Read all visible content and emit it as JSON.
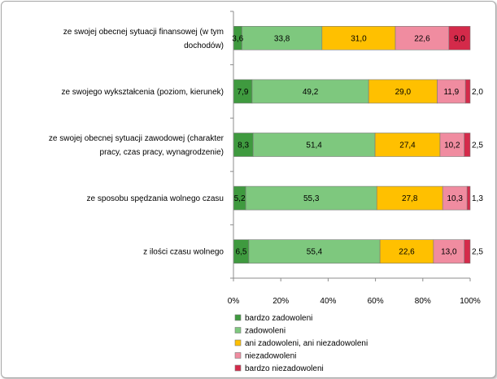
{
  "chart_data": {
    "type": "bar",
    "orientation": "horizontal",
    "stacked": "percent",
    "categories": [
      [
        "ze swojej obecnej sytuacji finansowej (w tym",
        "dochodów)"
      ],
      [
        "ze swojego wykształcenia (poziom, kierunek)"
      ],
      [
        "ze swojej obecnej sytuacji zawodowej (charakter",
        "pracy, czas pracy, wynagrodzenie)"
      ],
      [
        "ze sposobu spędzania wolnego czasu"
      ],
      [
        "z ilości czasu wolnego"
      ]
    ],
    "series": [
      {
        "name": "bardzo zadowoleni",
        "color": "#3f9a3f",
        "values": [
          3.6,
          7.9,
          8.3,
          5.2,
          6.5
        ]
      },
      {
        "name": "zadowoleni",
        "color": "#7ec87e",
        "values": [
          33.8,
          49.2,
          51.4,
          55.3,
          55.4
        ]
      },
      {
        "name": "ani zadowoleni,  ani niezadowoleni",
        "color": "#ffc000",
        "values": [
          31.0,
          29.0,
          27.4,
          27.8,
          22.6
        ]
      },
      {
        "name": "niezadowoleni",
        "color": "#f08ca0",
        "values": [
          22.6,
          11.9,
          10.2,
          10.3,
          13.0
        ]
      },
      {
        "name": "bardzo niezadowoleni",
        "color": "#d42a4a",
        "values": [
          9.0,
          2.0,
          2.5,
          1.3,
          2.5
        ]
      }
    ],
    "xlim": [
      0,
      100
    ],
    "xticks": [
      "0%",
      "20%",
      "40%",
      "60%",
      "80%",
      "100%"
    ],
    "legend": "bottom",
    "grid": false
  }
}
